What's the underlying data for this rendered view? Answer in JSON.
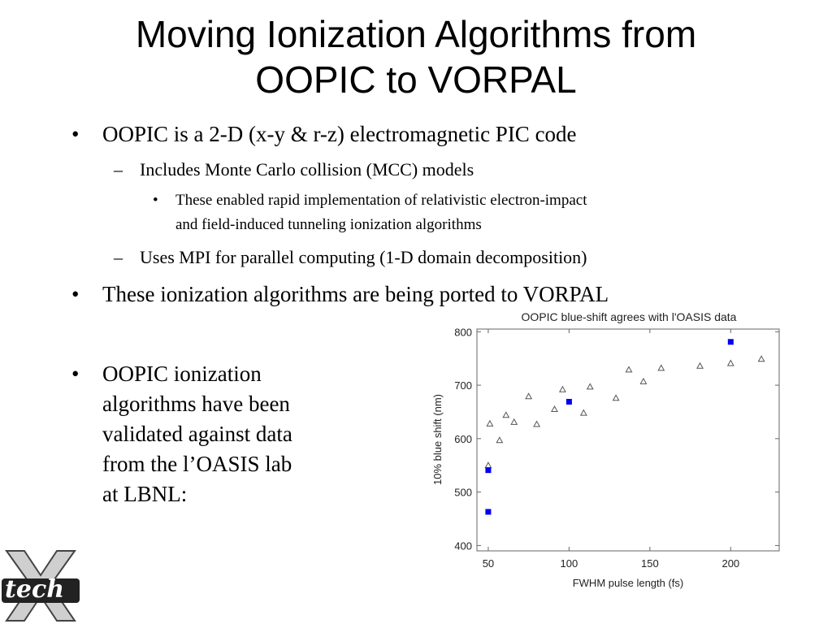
{
  "slide": {
    "title_line1": "Moving Ionization Algorithms from",
    "title_line2": "OOPIC to VORPAL",
    "bullet_char": "•",
    "dash_char": "–",
    "items": [
      {
        "level": 1,
        "text": "OOPIC is a 2-D (x-y & r-z) electromagnetic PIC code"
      },
      {
        "level": 2,
        "text": "Includes Monte Carlo collision (MCC) models"
      },
      {
        "level": 3,
        "text": "These enabled rapid implementation of relativistic electron-impact"
      },
      {
        "level": 3,
        "text": "and field-induced tunneling ionization algorithms"
      },
      {
        "level": 2,
        "text": "Uses MPI for parallel computing (1-D domain decomposition)"
      },
      {
        "level": 1,
        "text": "These ionization algorithms are being ported to VORPAL"
      }
    ],
    "left_bullet_lines": [
      "OOPIC ionization",
      "algorithms have been",
      "validated against data",
      "from the l’OASIS lab",
      "at LBNL:"
    ],
    "logo_text": "tech",
    "logo_mark": "X"
  },
  "chart_data": {
    "type": "scatter",
    "title": "OOPIC blue-shift agrees with l'OASIS data",
    "xlabel": "FWHM pulse length (fs)",
    "ylabel": "10% blue shift (nm)",
    "xlim": [
      43,
      230
    ],
    "ylim": [
      390,
      805
    ],
    "xticks": [
      50,
      100,
      150,
      200
    ],
    "yticks": [
      400,
      500,
      600,
      700,
      800
    ],
    "xtick_labels": [
      "50",
      "100",
      "150",
      "200"
    ],
    "ytick_labels": [
      "400",
      "500",
      "600",
      "700",
      "800"
    ],
    "grid": false,
    "series": [
      {
        "marker": "triangle-open",
        "color": "#555555",
        "points": [
          [
            50,
            550
          ],
          [
            51,
            628
          ],
          [
            57,
            597
          ],
          [
            61,
            644
          ],
          [
            66,
            631
          ],
          [
            75,
            679
          ],
          [
            80,
            627
          ],
          [
            91,
            655
          ],
          [
            96,
            692
          ],
          [
            109,
            648
          ],
          [
            113,
            697
          ],
          [
            129,
            676
          ],
          [
            137,
            729
          ],
          [
            146,
            707
          ],
          [
            157,
            732
          ],
          [
            181,
            736
          ],
          [
            200,
            741
          ],
          [
            219,
            749
          ]
        ]
      },
      {
        "marker": "square-filled",
        "color": "#0000ee",
        "points": [
          [
            50,
            541
          ],
          [
            50,
            463
          ],
          [
            100,
            669
          ],
          [
            200,
            781
          ]
        ]
      }
    ]
  }
}
